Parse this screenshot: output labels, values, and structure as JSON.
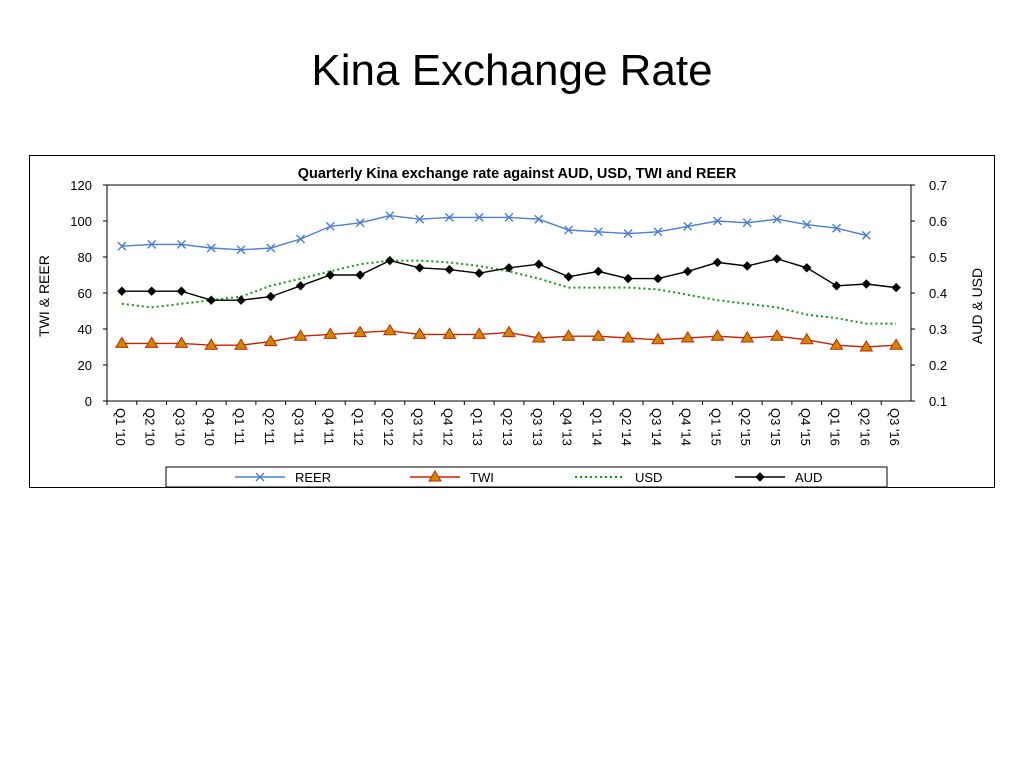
{
  "slide": {
    "title": "Kina Exchange Rate"
  },
  "chart_data": {
    "type": "line",
    "title": "Quarterly Kina exchange rate against AUD,  USD, TWI and REER",
    "ylabel_left": "TWI & REER",
    "ylabel_right": "AUD & USD",
    "ylim_left": [
      0,
      120
    ],
    "ylim_right": [
      0.1,
      0.7
    ],
    "yticks_left": [
      "0",
      "20",
      "40",
      "60",
      "80",
      "100",
      "120"
    ],
    "yticks_right": [
      "0.1",
      "0.2",
      "0.3",
      "0.4",
      "0.5",
      "0.6",
      "0.7"
    ],
    "categories": [
      "Q1 '10",
      "Q2 '10",
      "Q3 '10",
      "Q4 '10",
      "Q1 '11",
      "Q2 '11",
      "Q3 '11",
      "Q4 '11",
      "Q1 '12",
      "Q2 '12",
      "Q3 '12",
      "Q4 '12",
      "Q1 '13",
      "Q2 '13",
      "Q3 '13",
      "Q4 '13",
      "Q1 '14",
      "Q2 '14",
      "Q3 '14",
      "Q4 '14",
      "Q1 '15",
      "Q2 '15",
      "Q3 '15",
      "Q4 '15",
      "Q1 '16",
      "Q2 '16",
      "Q3 '16"
    ],
    "legend_position": "bottom",
    "grid": false,
    "series": [
      {
        "name": "REER",
        "axis": "left",
        "color": "#4a7fd4",
        "style": "solid",
        "marker": "x",
        "values": [
          86,
          87,
          87,
          85,
          84,
          85,
          90,
          97,
          99,
          103,
          101,
          102,
          102,
          102,
          101,
          95,
          94,
          93,
          94,
          97,
          100,
          99,
          101,
          98,
          96,
          92,
          null
        ]
      },
      {
        "name": "TWI",
        "axis": "left",
        "color": "#cc2200",
        "style": "solid",
        "marker": "triangle",
        "values": [
          32,
          32,
          32,
          31,
          31,
          33,
          36,
          37,
          38,
          39,
          37,
          37,
          37,
          38,
          35,
          36,
          36,
          35,
          34,
          35,
          36,
          35,
          36,
          34,
          31,
          30,
          31
        ]
      },
      {
        "name": "USD",
        "axis": "right",
        "color": "#119911",
        "style": "dotted",
        "marker": "none",
        "values": [
          0.37,
          0.36,
          0.37,
          0.38,
          0.39,
          0.42,
          0.44,
          0.46,
          0.48,
          0.49,
          0.49,
          0.485,
          0.475,
          0.46,
          0.44,
          0.415,
          0.415,
          0.415,
          0.41,
          0.395,
          0.38,
          0.37,
          0.36,
          0.34,
          0.33,
          0.315,
          0.315
        ]
      },
      {
        "name": "AUD",
        "axis": "right",
        "color": "#000000",
        "style": "solid",
        "marker": "diamond",
        "values": [
          0.405,
          0.405,
          0.405,
          0.38,
          0.38,
          0.39,
          0.42,
          0.45,
          0.45,
          0.49,
          0.47,
          0.465,
          0.455,
          0.47,
          0.48,
          0.445,
          0.46,
          0.44,
          0.44,
          0.46,
          0.485,
          0.475,
          0.495,
          0.47,
          0.42,
          0.425,
          0.415
        ]
      }
    ]
  }
}
